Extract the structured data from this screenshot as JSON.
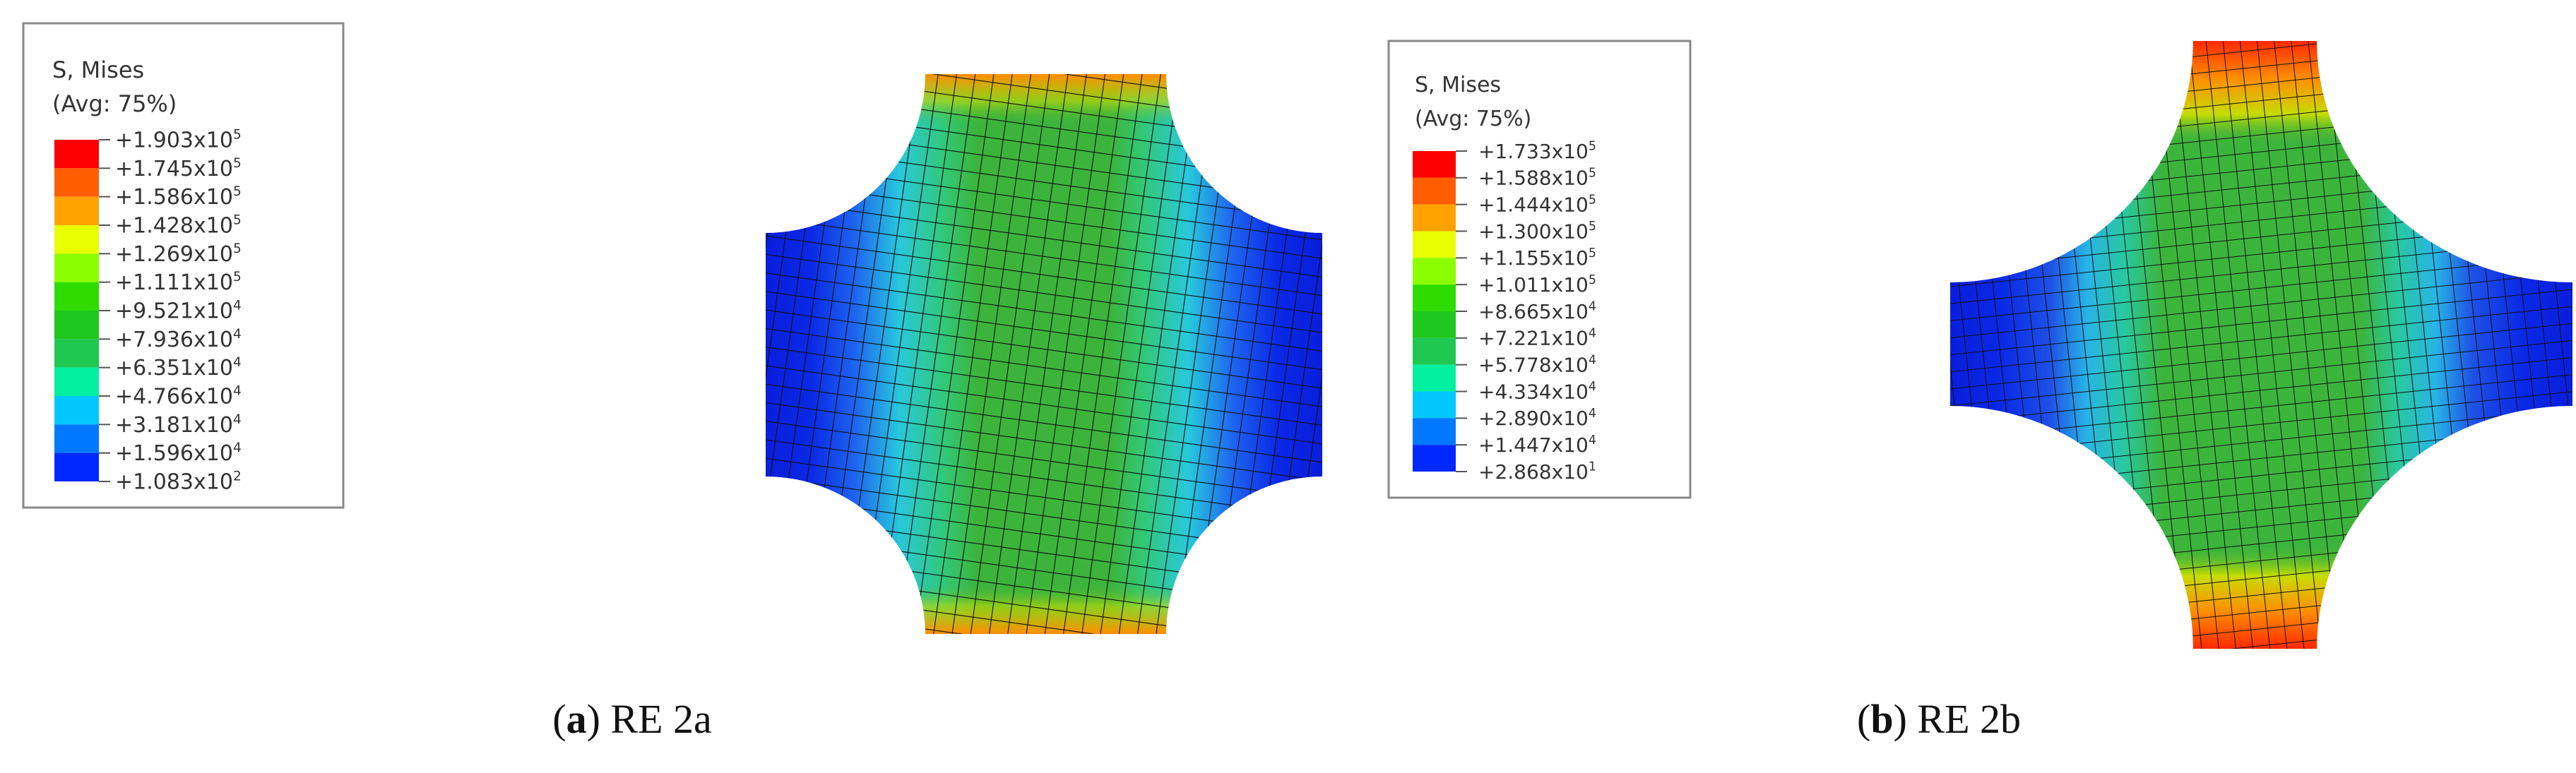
{
  "panels": [
    {
      "legend": {
        "title": "S, Mises",
        "subtitle": "(Avg: 75%)",
        "labels": [
          {
            "base": "+1.903x10",
            "exp": "5"
          },
          {
            "base": "+1.745x10",
            "exp": "5"
          },
          {
            "base": "+1.586x10",
            "exp": "5"
          },
          {
            "base": "+1.428x10",
            "exp": "5"
          },
          {
            "base": "+1.269x10",
            "exp": "5"
          },
          {
            "base": "+1.111x10",
            "exp": "5"
          },
          {
            "base": "+9.521x10",
            "exp": "4"
          },
          {
            "base": "+7.936x10",
            "exp": "4"
          },
          {
            "base": "+6.351x10",
            "exp": "4"
          },
          {
            "base": "+4.766x10",
            "exp": "4"
          },
          {
            "base": "+3.181x10",
            "exp": "4"
          },
          {
            "base": "+1.596x10",
            "exp": "4"
          },
          {
            "base": "+1.083x10",
            "exp": "2"
          }
        ],
        "colors": [
          "#ff0000",
          "#ff5d00",
          "#ffa200",
          "#e8ff00",
          "#8bff00",
          "#2edc00",
          "#1ec81e",
          "#1ec850",
          "#00f0a0",
          "#00c8ff",
          "#0078ff",
          "#0028ff"
        ]
      },
      "caption": {
        "open": "(",
        "letter": "a",
        "rest": ") RE 2a"
      }
    },
    {
      "legend": {
        "title": "S, Mises",
        "subtitle": "(Avg: 75%)",
        "labels": [
          {
            "base": "+1.733x10",
            "exp": "5"
          },
          {
            "base": "+1.588x10",
            "exp": "5"
          },
          {
            "base": "+1.444x10",
            "exp": "5"
          },
          {
            "base": "+1.300x10",
            "exp": "5"
          },
          {
            "base": "+1.155x10",
            "exp": "5"
          },
          {
            "base": "+1.011x10",
            "exp": "5"
          },
          {
            "base": "+8.665x10",
            "exp": "4"
          },
          {
            "base": "+7.221x10",
            "exp": "4"
          },
          {
            "base": "+5.778x10",
            "exp": "4"
          },
          {
            "base": "+4.334x10",
            "exp": "4"
          },
          {
            "base": "+2.890x10",
            "exp": "4"
          },
          {
            "base": "+1.447x10",
            "exp": "4"
          },
          {
            "base": "+2.868x10",
            "exp": "1"
          }
        ],
        "colors": [
          "#ff0000",
          "#ff5d00",
          "#ffa200",
          "#e8ff00",
          "#8bff00",
          "#2edc00",
          "#1ec81e",
          "#1ec850",
          "#00f0a0",
          "#00c8ff",
          "#0078ff",
          "#0028ff"
        ]
      },
      "caption": {
        "open": "(",
        "letter": "b",
        "rest": ") RE 2b"
      }
    }
  ]
}
